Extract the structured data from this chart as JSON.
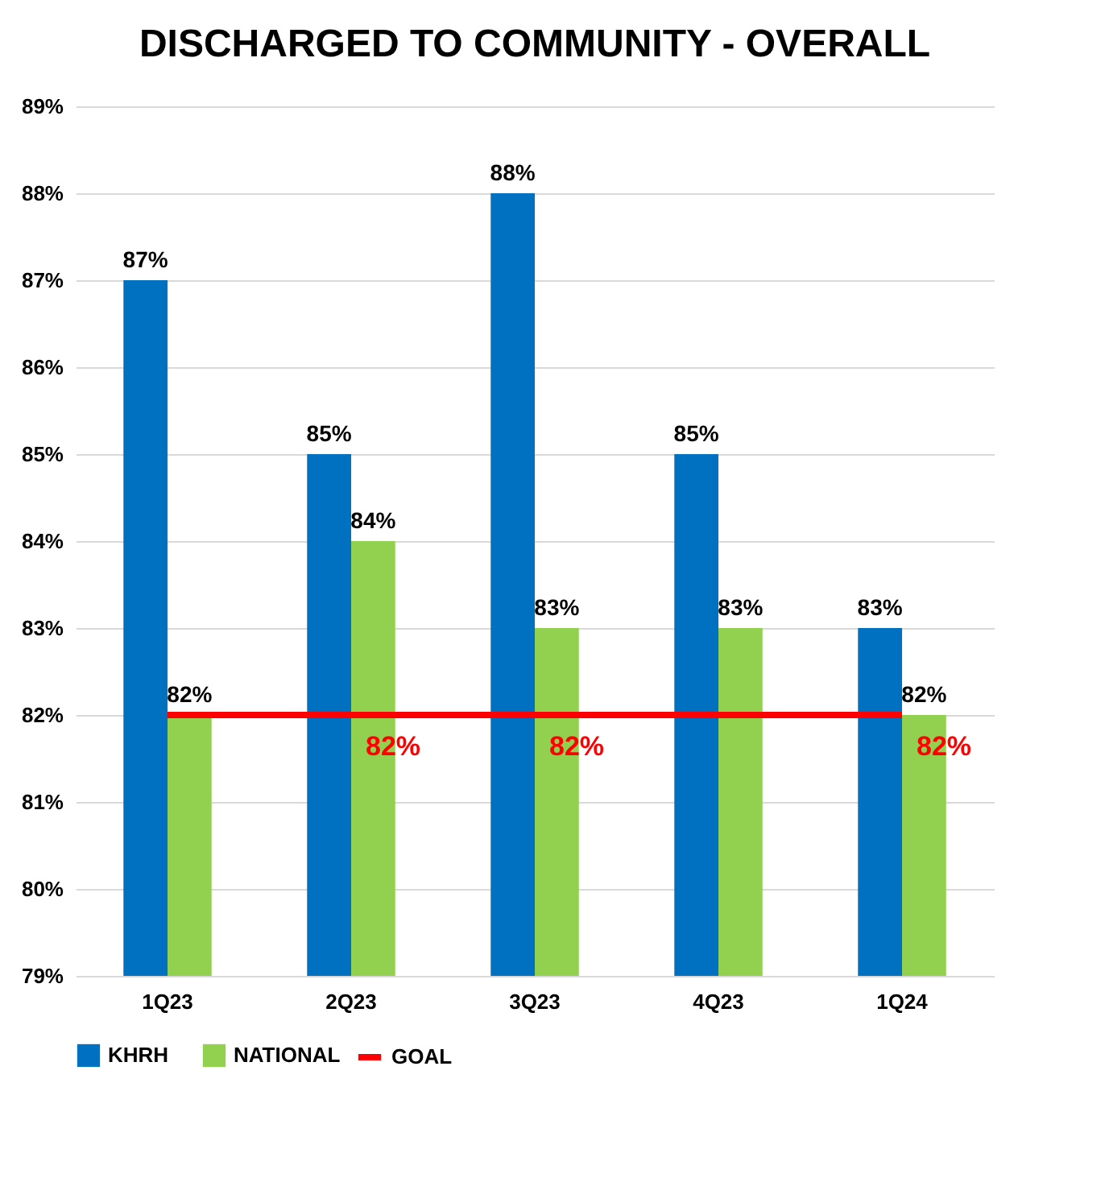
{
  "chart_data": {
    "type": "bar",
    "title": "DISCHARGED TO COMMUNITY - OVERALL",
    "categories": [
      "1Q23",
      "2Q23",
      "3Q23",
      "4Q23",
      "1Q24"
    ],
    "series": [
      {
        "name": "KHRH",
        "color": "#0070c0",
        "values": [
          87,
          85,
          88,
          85,
          83
        ],
        "value_labels": [
          "87%",
          "85%",
          "88%",
          "85%",
          "83%"
        ]
      },
      {
        "name": "NATIONAL",
        "color": "#92d050",
        "values": [
          82,
          84,
          83,
          83,
          82
        ],
        "value_labels": [
          "82%",
          "84%",
          "83%",
          "83%",
          "82%"
        ]
      },
      {
        "name": "GOAL",
        "type": "line",
        "color": "#ff0000",
        "values": [
          82,
          82,
          82,
          82,
          82
        ],
        "value_labels": [
          null,
          "82%",
          "82%",
          null,
          "82%"
        ]
      }
    ],
    "ylim": [
      79,
      89
    ],
    "yticks": [
      {
        "value": 79,
        "label": "79%"
      },
      {
        "value": 80,
        "label": "80%"
      },
      {
        "value": 81,
        "label": "81%"
      },
      {
        "value": 82,
        "label": "82%"
      },
      {
        "value": 83,
        "label": "83%"
      },
      {
        "value": 84,
        "label": "84%"
      },
      {
        "value": 85,
        "label": "85%"
      },
      {
        "value": 86,
        "label": "86%"
      },
      {
        "value": 87,
        "label": "87%"
      },
      {
        "value": 88,
        "label": "88%"
      },
      {
        "value": 89,
        "label": "89%"
      }
    ],
    "grid": true,
    "legend": "bottom"
  }
}
